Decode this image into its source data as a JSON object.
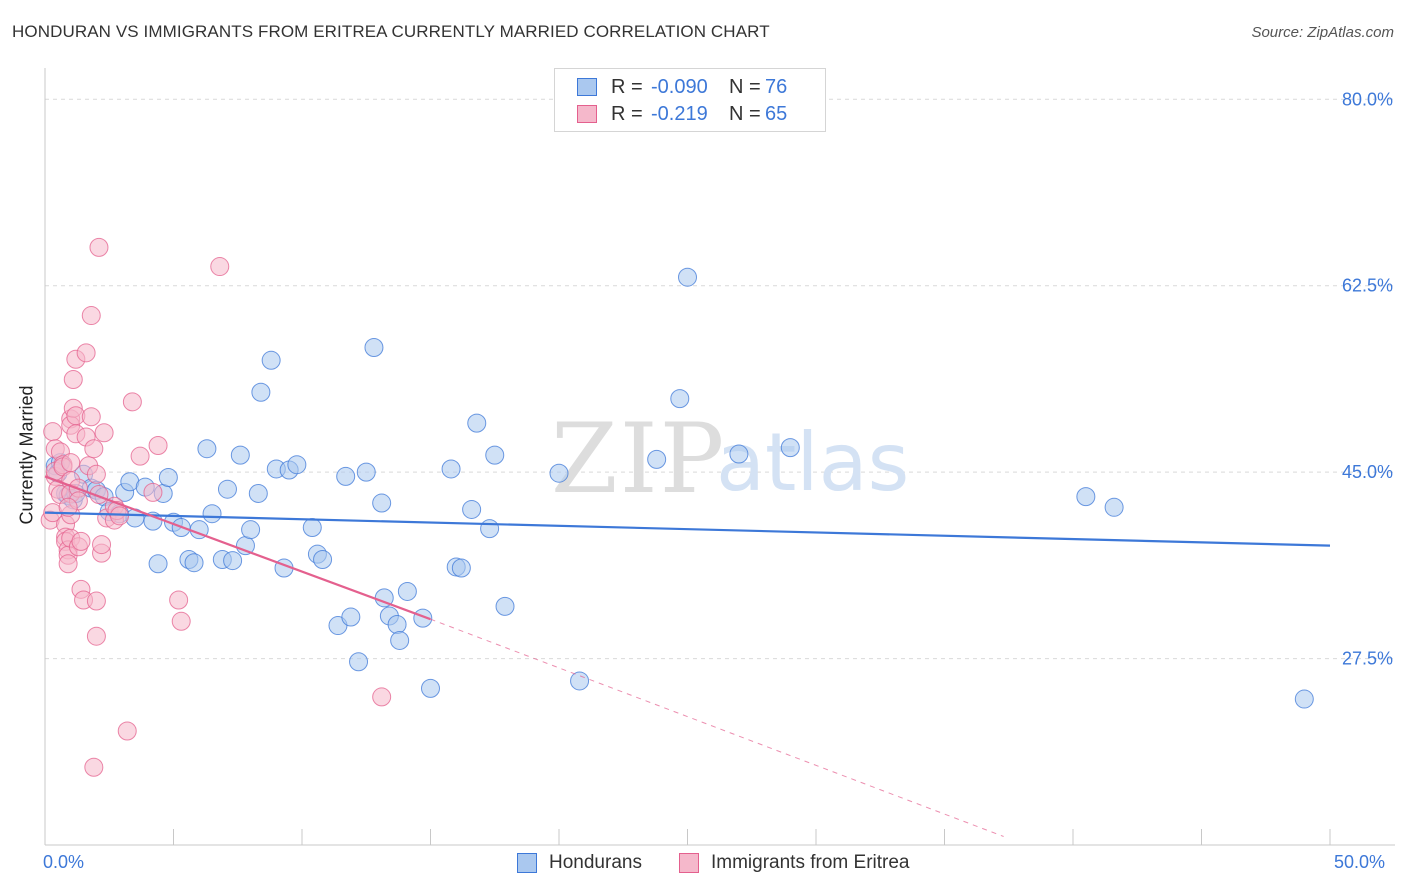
{
  "title": "HONDURAN VS IMMIGRANTS FROM ERITREA CURRENTLY MARRIED CORRELATION CHART",
  "source": "Source: ZipAtlas.com",
  "watermark": {
    "zip": "ZIP",
    "atlas": "atlas"
  },
  "colors": {
    "blue": "#3d78d8",
    "blue_fill": "#aac8ef",
    "pink": "#e4608e",
    "pink_fill": "#f5b8cb",
    "grid": "#d9d9d9"
  },
  "legend_top": {
    "rows": [
      {
        "r_label": "R =",
        "r_value": "-0.090",
        "n_label": "N =",
        "n_value": "76"
      },
      {
        "r_label": "R =",
        "r_value": "-0.219",
        "n_label": "N =",
        "n_value": "65"
      }
    ]
  },
  "legend_bottom": [
    "Hondurans",
    "Immigrants from Eritrea"
  ],
  "chart_data": {
    "type": "scatter",
    "title": "HONDURAN VS IMMIGRANTS FROM ERITREA CURRENTLY MARRIED CORRELATION CHART",
    "xlabel": "",
    "ylabel": "Currently Married",
    "xlim": [
      0,
      50
    ],
    "ylim": [
      10,
      82
    ],
    "x_tick_labels": [
      "0.0%",
      "50.0%"
    ],
    "y_ticks": [
      27.5,
      45.0,
      62.5,
      80.0
    ],
    "y_tick_labels": [
      "27.5%",
      "45.0%",
      "62.5%",
      "80.0%"
    ],
    "grid": true,
    "series": [
      {
        "name": "Hondurans",
        "r": -0.09,
        "n": 76,
        "trend": {
          "x": [
            0,
            50
          ],
          "y": [
            41.2,
            38.1
          ]
        },
        "points": [
          [
            0.4,
            45.6
          ],
          [
            0.5,
            44.9
          ],
          [
            0.6,
            45.9
          ],
          [
            0.8,
            43.0
          ],
          [
            0.9,
            42.8
          ],
          [
            1.1,
            42.4
          ],
          [
            1.2,
            43.0
          ],
          [
            1.5,
            44.8
          ],
          [
            1.8,
            43.5
          ],
          [
            2.0,
            43.3
          ],
          [
            2.3,
            42.7
          ],
          [
            2.5,
            41.3
          ],
          [
            2.9,
            41.1
          ],
          [
            3.1,
            43.1
          ],
          [
            3.3,
            44.1
          ],
          [
            3.5,
            40.7
          ],
          [
            3.9,
            43.6
          ],
          [
            4.2,
            40.4
          ],
          [
            4.4,
            36.4
          ],
          [
            4.6,
            43.0
          ],
          [
            4.8,
            44.5
          ],
          [
            5.0,
            40.3
          ],
          [
            5.3,
            39.8
          ],
          [
            5.6,
            36.8
          ],
          [
            5.8,
            36.5
          ],
          [
            6.0,
            39.6
          ],
          [
            6.3,
            47.2
          ],
          [
            6.5,
            41.1
          ],
          [
            6.9,
            36.8
          ],
          [
            7.1,
            43.4
          ],
          [
            7.3,
            36.7
          ],
          [
            7.6,
            46.6
          ],
          [
            7.8,
            38.1
          ],
          [
            8.0,
            39.6
          ],
          [
            8.3,
            43.0
          ],
          [
            8.4,
            52.5
          ],
          [
            8.8,
            55.5
          ],
          [
            9.0,
            45.3
          ],
          [
            9.3,
            36.0
          ],
          [
            9.5,
            45.2
          ],
          [
            9.8,
            45.7
          ],
          [
            10.4,
            39.8
          ],
          [
            10.6,
            37.3
          ],
          [
            10.8,
            36.8
          ],
          [
            11.4,
            30.6
          ],
          [
            11.7,
            44.6
          ],
          [
            11.9,
            31.4
          ],
          [
            12.2,
            27.2
          ],
          [
            12.5,
            45.0
          ],
          [
            12.8,
            56.7
          ],
          [
            13.1,
            42.1
          ],
          [
            13.2,
            33.2
          ],
          [
            13.4,
            31.5
          ],
          [
            13.7,
            30.7
          ],
          [
            13.8,
            29.2
          ],
          [
            14.1,
            33.8
          ],
          [
            14.7,
            31.3
          ],
          [
            15.0,
            24.7
          ],
          [
            15.8,
            45.3
          ],
          [
            16.0,
            36.1
          ],
          [
            16.2,
            36.0
          ],
          [
            16.6,
            41.5
          ],
          [
            16.8,
            49.6
          ],
          [
            17.3,
            39.7
          ],
          [
            17.5,
            46.6
          ],
          [
            17.9,
            32.4
          ],
          [
            20.0,
            44.9
          ],
          [
            20.8,
            25.4
          ],
          [
            23.8,
            46.2
          ],
          [
            24.7,
            51.9
          ],
          [
            25.0,
            63.3
          ],
          [
            27.0,
            46.7
          ],
          [
            29.0,
            47.3
          ],
          [
            40.5,
            42.7
          ],
          [
            41.6,
            41.7
          ],
          [
            49.0,
            23.7
          ]
        ]
      },
      {
        "name": "Immigrants from Eritrea",
        "r": -0.219,
        "n": 65,
        "trend": {
          "x": [
            0,
            15
          ],
          "y": [
            44.6,
            31.2
          ]
        },
        "trend_extension": {
          "x": [
            15,
            37.3
          ],
          "y": [
            31.2,
            10.8
          ]
        },
        "points": [
          [
            0.2,
            40.5
          ],
          [
            0.3,
            41.2
          ],
          [
            0.3,
            48.8
          ],
          [
            0.4,
            47.2
          ],
          [
            0.4,
            44.6
          ],
          [
            0.4,
            45.1
          ],
          [
            0.5,
            43.4
          ],
          [
            0.6,
            46.9
          ],
          [
            0.6,
            42.9
          ],
          [
            0.7,
            45.7
          ],
          [
            0.7,
            45.5
          ],
          [
            0.8,
            40.1
          ],
          [
            0.8,
            38.9
          ],
          [
            0.8,
            38.5
          ],
          [
            0.9,
            37.7
          ],
          [
            0.9,
            37.2
          ],
          [
            0.9,
            36.4
          ],
          [
            1.0,
            50.0
          ],
          [
            1.0,
            49.4
          ],
          [
            1.0,
            45.9
          ],
          [
            1.0,
            44.2
          ],
          [
            1.0,
            43.0
          ],
          [
            1.0,
            41.0
          ],
          [
            1.0,
            38.8
          ],
          [
            1.1,
            53.7
          ],
          [
            1.1,
            51.0
          ],
          [
            1.2,
            55.6
          ],
          [
            1.2,
            50.3
          ],
          [
            1.2,
            48.6
          ],
          [
            1.3,
            43.5
          ],
          [
            1.3,
            42.3
          ],
          [
            1.3,
            38.0
          ],
          [
            1.4,
            38.5
          ],
          [
            1.4,
            34.0
          ],
          [
            1.5,
            33.0
          ],
          [
            1.6,
            56.2
          ],
          [
            1.6,
            48.3
          ],
          [
            1.7,
            45.6
          ],
          [
            1.8,
            59.7
          ],
          [
            1.8,
            50.2
          ],
          [
            1.9,
            47.2
          ],
          [
            2.0,
            44.8
          ],
          [
            2.0,
            32.9
          ],
          [
            2.0,
            29.6
          ],
          [
            2.1,
            66.1
          ],
          [
            2.1,
            42.9
          ],
          [
            2.2,
            37.4
          ],
          [
            2.2,
            38.2
          ],
          [
            2.3,
            48.7
          ],
          [
            2.4,
            40.7
          ],
          [
            2.7,
            40.5
          ],
          [
            2.7,
            41.8
          ],
          [
            2.8,
            41.4
          ],
          [
            2.9,
            40.9
          ],
          [
            3.2,
            20.7
          ],
          [
            3.4,
            51.6
          ],
          [
            3.7,
            46.5
          ],
          [
            4.2,
            43.1
          ],
          [
            4.4,
            47.5
          ],
          [
            5.2,
            33.0
          ],
          [
            5.3,
            31.0
          ],
          [
            6.8,
            64.3
          ],
          [
            13.1,
            23.9
          ],
          [
            1.9,
            17.3
          ],
          [
            0.9,
            41.7
          ]
        ]
      }
    ]
  }
}
